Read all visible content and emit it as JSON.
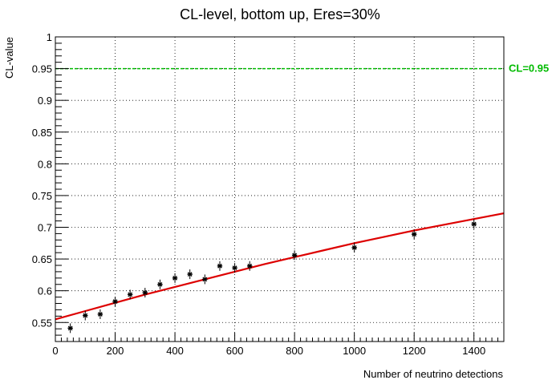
{
  "chart_data": {
    "type": "scatter",
    "title": "CL-level, bottom up, Eres=30%",
    "xlabel": "Number of neutrino detections",
    "ylabel": "CL-value",
    "xlim": [
      0,
      1500
    ],
    "ylim": [
      0.52,
      1.0
    ],
    "xticks": [
      0,
      200,
      400,
      600,
      800,
      1000,
      1200,
      1400
    ],
    "xtick_labels": [
      "0",
      "200",
      "400",
      "600",
      "800",
      "1000",
      "1200",
      "1400"
    ],
    "yticks": [
      0.55,
      0.6,
      0.65,
      0.7,
      0.75,
      0.8,
      0.85,
      0.9,
      0.95,
      1.0
    ],
    "ytick_labels": [
      "0.55",
      "0.6",
      "0.65",
      "0.7",
      "0.75",
      "0.8",
      "0.85",
      "0.9",
      "0.95",
      "1"
    ],
    "grid": true,
    "series": [
      {
        "type": "scatter",
        "color": "#000000",
        "marker": "star",
        "x": [
          50,
          100,
          150,
          200,
          250,
          300,
          350,
          400,
          450,
          500,
          550,
          600,
          650,
          800,
          1000,
          1200,
          1400
        ],
        "y": [
          0.541,
          0.561,
          0.563,
          0.583,
          0.594,
          0.597,
          0.61,
          0.62,
          0.626,
          0.618,
          0.639,
          0.636,
          0.639,
          0.656,
          0.668,
          0.689,
          0.705
        ]
      },
      {
        "type": "line",
        "color": "#dd0000",
        "x": [
          0,
          100,
          200,
          300,
          400,
          500,
          600,
          700,
          800,
          900,
          1000,
          1100,
          1200,
          1300,
          1400,
          1500
        ],
        "y": [
          0.555,
          0.568,
          0.581,
          0.594,
          0.606,
          0.618,
          0.63,
          0.642,
          0.653,
          0.664,
          0.675,
          0.685,
          0.695,
          0.704,
          0.713,
          0.722
        ]
      }
    ],
    "reference_line": {
      "y": 0.95,
      "label": "CL=0.95",
      "color": "#00bb00"
    }
  }
}
